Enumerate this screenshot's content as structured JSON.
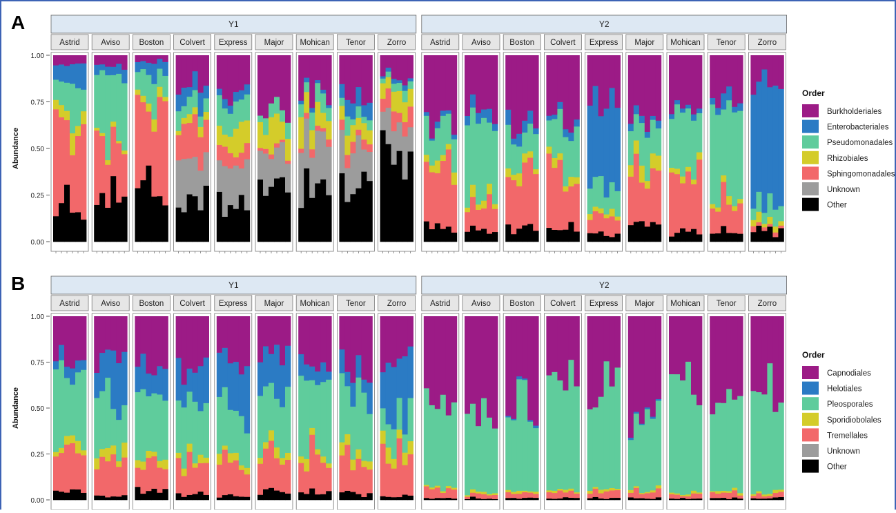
{
  "panels": [
    {
      "label": "A",
      "ylabel": "Abundance",
      "yticks": [
        "1.00",
        "0.75",
        "0.50",
        "0.25",
        "0.00"
      ],
      "strips": [
        "Y1",
        "Y2"
      ],
      "cultivars": [
        "Astrid",
        "Aviso",
        "Boston",
        "Colvert",
        "Express",
        "Major",
        "Mohican",
        "Tenor",
        "Zorro"
      ],
      "legend_title": "Order",
      "legend": [
        {
          "name": "Burkholderiales",
          "color": "#9c1b86"
        },
        {
          "name": "Enterobacteriales",
          "color": "#2b7bc4"
        },
        {
          "name": "Pseudomonadales",
          "color": "#5fcc9c"
        },
        {
          "name": "Rhizobiales",
          "color": "#d4cc2a"
        },
        {
          "name": "Sphingomonadales",
          "color": "#f2686a"
        },
        {
          "name": "Unknown",
          "color": "#9c9c9c"
        },
        {
          "name": "Other",
          "color": "#000000"
        }
      ]
    },
    {
      "label": "B",
      "ylabel": "Abundance",
      "yticks": [
        "1.00",
        "0.75",
        "0.50",
        "0.25",
        "0.00"
      ],
      "strips": [
        "Y1",
        "Y2"
      ],
      "cultivars": [
        "Astrid",
        "Aviso",
        "Boston",
        "Colvert",
        "Express",
        "Major",
        "Mohican",
        "Tenor",
        "Zorro"
      ],
      "legend_title": "Order",
      "legend": [
        {
          "name": "Capnodiales",
          "color": "#9c1b86"
        },
        {
          "name": "Helotiales",
          "color": "#2b7bc4"
        },
        {
          "name": "Pleosporales",
          "color": "#5fcc9c"
        },
        {
          "name": "Sporidiobolales",
          "color": "#d4cc2a"
        },
        {
          "name": "Tremellales",
          "color": "#f2686a"
        },
        {
          "name": "Unknown",
          "color": "#9c9c9c"
        },
        {
          "name": "Other",
          "color": "#000000"
        }
      ]
    }
  ],
  "chart_data": [
    {
      "type": "bar",
      "stacked": true,
      "ylabel": "Abundance",
      "ylim": [
        0,
        1
      ],
      "facets_outer": [
        "Y1",
        "Y2"
      ],
      "facets_inner": [
        "Astrid",
        "Aviso",
        "Boston",
        "Colvert",
        "Express",
        "Major",
        "Mohican",
        "Tenor",
        "Zorro"
      ],
      "order": [
        "Other",
        "Unknown",
        "Sphingomonadales",
        "Rhizobiales",
        "Pseudomonadales",
        "Enterobacteriales",
        "Burkholderiales"
      ],
      "legend_title": "Order",
      "series_names": [
        "Burkholderiales",
        "Enterobacteriales",
        "Pseudomonadales",
        "Rhizobiales",
        "Sphingomonadales",
        "Unknown",
        "Other"
      ],
      "note_values": "approximate mean composition per facet (stack bottom→top follows 'order')",
      "facets": {
        "Y1": {
          "Astrid": [
            0.2,
            0.0,
            0.38,
            0.08,
            0.18,
            0.12,
            0.04
          ],
          "Aviso": [
            0.28,
            0.0,
            0.3,
            0.02,
            0.3,
            0.05,
            0.05
          ],
          "Boston": [
            0.3,
            0.0,
            0.45,
            0.04,
            0.12,
            0.06,
            0.03
          ],
          "Colvert": [
            0.22,
            0.22,
            0.2,
            0.04,
            0.08,
            0.08,
            0.16
          ],
          "Express": [
            0.22,
            0.2,
            0.08,
            0.12,
            0.12,
            0.04,
            0.22
          ],
          "Major": [
            0.33,
            0.22,
            0.02,
            0.12,
            0.06,
            0.0,
            0.25
          ],
          "Mohican": [
            0.33,
            0.22,
            0.03,
            0.14,
            0.08,
            0.02,
            0.18
          ],
          "Tenor": [
            0.3,
            0.2,
            0.05,
            0.07,
            0.06,
            0.08,
            0.24
          ],
          "Zorro": [
            0.5,
            0.16,
            0.08,
            0.08,
            0.04,
            0.02,
            0.12
          ]
        },
        "Y2": {
          "Astrid": [
            0.07,
            0.0,
            0.3,
            0.05,
            0.18,
            0.02,
            0.38
          ],
          "Aviso": [
            0.06,
            0.0,
            0.12,
            0.04,
            0.42,
            0.06,
            0.3
          ],
          "Boston": [
            0.07,
            0.0,
            0.32,
            0.05,
            0.18,
            0.05,
            0.33
          ],
          "Colvert": [
            0.08,
            0.0,
            0.28,
            0.05,
            0.22,
            0.03,
            0.34
          ],
          "Express": [
            0.05,
            0.0,
            0.1,
            0.04,
            0.14,
            0.42,
            0.25
          ],
          "Major": [
            0.08,
            0.0,
            0.28,
            0.06,
            0.22,
            0.04,
            0.32
          ],
          "Mohican": [
            0.06,
            0.0,
            0.28,
            0.04,
            0.3,
            0.03,
            0.29
          ],
          "Tenor": [
            0.05,
            0.0,
            0.16,
            0.04,
            0.44,
            0.06,
            0.25
          ],
          "Zorro": [
            0.05,
            0.0,
            0.02,
            0.03,
            0.08,
            0.68,
            0.14
          ]
        }
      }
    },
    {
      "type": "bar",
      "stacked": true,
      "ylabel": "Abundance",
      "ylim": [
        0,
        1
      ],
      "facets_outer": [
        "Y1",
        "Y2"
      ],
      "facets_inner": [
        "Astrid",
        "Aviso",
        "Boston",
        "Colvert",
        "Express",
        "Major",
        "Mohican",
        "Tenor",
        "Zorro"
      ],
      "order": [
        "Other",
        "Unknown",
        "Tremellales",
        "Sporidiobolales",
        "Pleosporales",
        "Helotiales",
        "Capnodiales"
      ],
      "legend_title": "Order",
      "series_names": [
        "Capnodiales",
        "Helotiales",
        "Pleosporales",
        "Sporidiobolales",
        "Tremellales",
        "Unknown",
        "Other"
      ],
      "note_values": "approximate mean composition per facet (stack bottom→top follows 'order')",
      "facets": {
        "Y1": {
          "Astrid": [
            0.04,
            0.0,
            0.19,
            0.04,
            0.42,
            0.07,
            0.24
          ],
          "Aviso": [
            0.02,
            0.0,
            0.17,
            0.05,
            0.28,
            0.25,
            0.23
          ],
          "Boston": [
            0.05,
            0.0,
            0.16,
            0.04,
            0.34,
            0.15,
            0.26
          ],
          "Colvert": [
            0.03,
            0.0,
            0.19,
            0.04,
            0.27,
            0.19,
            0.28
          ],
          "Express": [
            0.02,
            0.0,
            0.18,
            0.04,
            0.27,
            0.22,
            0.27
          ],
          "Major": [
            0.04,
            0.0,
            0.16,
            0.04,
            0.33,
            0.22,
            0.21
          ],
          "Mohican": [
            0.04,
            0.0,
            0.18,
            0.04,
            0.4,
            0.09,
            0.25
          ],
          "Tenor": [
            0.03,
            0.0,
            0.18,
            0.05,
            0.36,
            0.11,
            0.27
          ],
          "Zorro": [
            0.02,
            0.0,
            0.22,
            0.05,
            0.16,
            0.3,
            0.25
          ]
        },
        "Y2": {
          "Astrid": [
            0.01,
            0.0,
            0.05,
            0.01,
            0.46,
            0.0,
            0.47
          ],
          "Aviso": [
            0.01,
            0.0,
            0.02,
            0.01,
            0.41,
            0.0,
            0.55
          ],
          "Boston": [
            0.01,
            0.0,
            0.04,
            0.01,
            0.42,
            0.01,
            0.51
          ],
          "Colvert": [
            0.01,
            0.0,
            0.03,
            0.01,
            0.6,
            0.0,
            0.35
          ],
          "Express": [
            0.01,
            0.0,
            0.03,
            0.01,
            0.59,
            0.0,
            0.36
          ],
          "Major": [
            0.01,
            0.0,
            0.04,
            0.01,
            0.42,
            0.01,
            0.51
          ],
          "Mohican": [
            0.01,
            0.0,
            0.02,
            0.01,
            0.56,
            0.0,
            0.4
          ],
          "Tenor": [
            0.01,
            0.0,
            0.03,
            0.01,
            0.52,
            0.0,
            0.43
          ],
          "Zorro": [
            0.01,
            0.0,
            0.02,
            0.01,
            0.57,
            0.0,
            0.39
          ]
        }
      }
    }
  ]
}
